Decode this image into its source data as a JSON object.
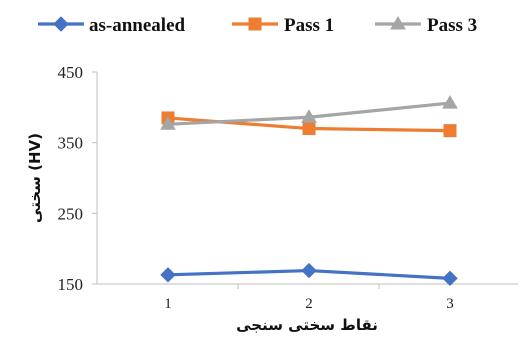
{
  "chart_data": {
    "type": "line",
    "x": [
      1,
      2,
      3
    ],
    "xlabel": "نقاط سختی سنجی",
    "ylabel": "سختی (HV)",
    "ylim": [
      150,
      450
    ],
    "yticks": [
      150,
      250,
      350,
      450
    ],
    "grid": false,
    "legend_position": "top",
    "series": [
      {
        "name": "as-annealed",
        "values": [
          163,
          169,
          158
        ],
        "color": "#4472C4",
        "marker": "diamond"
      },
      {
        "name": "Pass 1",
        "values": [
          385,
          370,
          367
        ],
        "color": "#ED7D31",
        "marker": "square"
      },
      {
        "name": "Pass 3",
        "values": [
          376,
          386,
          406
        ],
        "color": "#A5A5A5",
        "marker": "triangle"
      }
    ]
  }
}
